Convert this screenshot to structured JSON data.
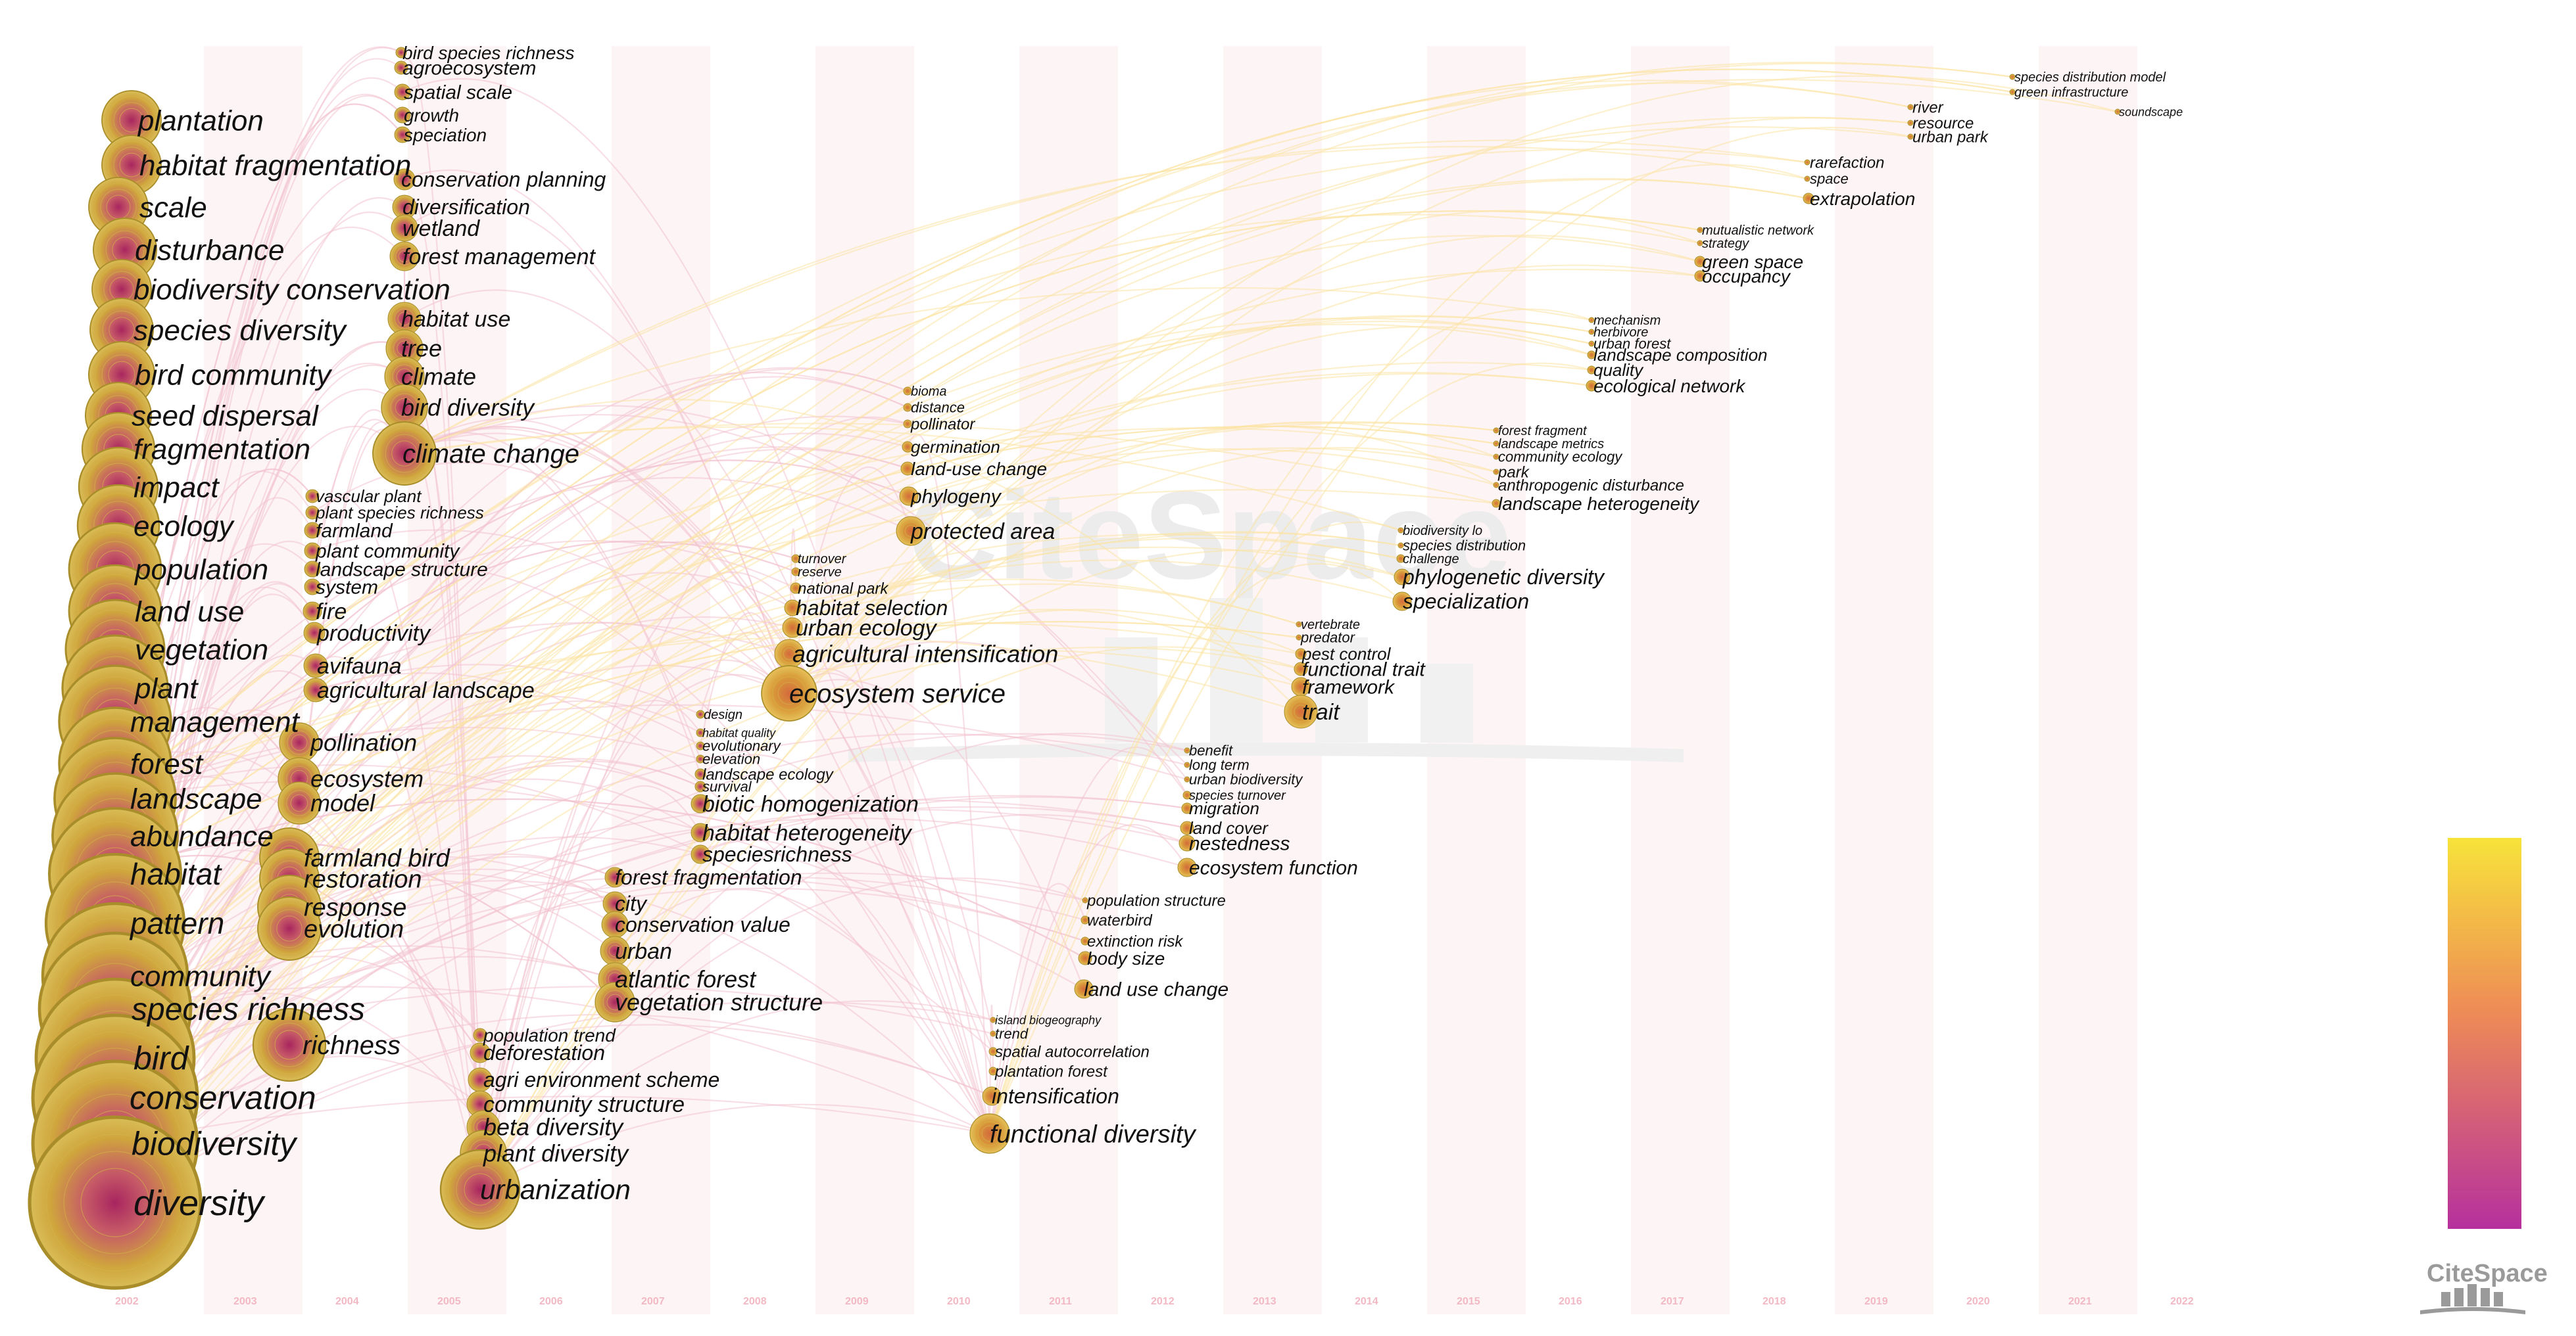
{
  "years": [
    "2002",
    "2003",
    "2004",
    "2005",
    "2006",
    "2007",
    "2008",
    "2009",
    "2010",
    "2011",
    "2012",
    "2013",
    "2014",
    "2015",
    "2016",
    "2017",
    "2018",
    "2019",
    "2020",
    "2021",
    "2022"
  ],
  "logo_text": "CiteSpace",
  "watermark_text": "CiteSpace",
  "colors": {
    "node_fill": "#c9a637",
    "node_core": "#b8436e",
    "node_edge": "#a88d2a",
    "link_old": "#f2c3cf",
    "link_new": "#fbe3a4",
    "legend_top": "#f7e33a",
    "legend_mid": "#ee8a57",
    "legend_bottom": "#b6309d",
    "year_band": "#fdf1f3"
  },
  "keywords": [
    {
      "label": "plantation",
      "year": "2002"
    },
    {
      "label": "habitat fragmentation",
      "year": "2002"
    },
    {
      "label": "scale",
      "year": "2002"
    },
    {
      "label": "disturbance",
      "year": "2002"
    },
    {
      "label": "biodiversity conservation",
      "year": "2002"
    },
    {
      "label": "species diversity",
      "year": "2002"
    },
    {
      "label": "bird community",
      "year": "2002"
    },
    {
      "label": "seed dispersal",
      "year": "2002"
    },
    {
      "label": "fragmentation",
      "year": "2002"
    },
    {
      "label": "impact",
      "year": "2002"
    },
    {
      "label": "ecology",
      "year": "2002"
    },
    {
      "label": "population",
      "year": "2002"
    },
    {
      "label": "land use",
      "year": "2002"
    },
    {
      "label": "vegetation",
      "year": "2002"
    },
    {
      "label": "plant",
      "year": "2002"
    },
    {
      "label": "management",
      "year": "2002"
    },
    {
      "label": "forest",
      "year": "2002"
    },
    {
      "label": "landscape",
      "year": "2002"
    },
    {
      "label": "abundance",
      "year": "2002"
    },
    {
      "label": "habitat",
      "year": "2002"
    },
    {
      "label": "pattern",
      "year": "2002"
    },
    {
      "label": "community",
      "year": "2002"
    },
    {
      "label": "species richness",
      "year": "2002"
    },
    {
      "label": "bird",
      "year": "2002"
    },
    {
      "label": "conservation",
      "year": "2002"
    },
    {
      "label": "biodiversity",
      "year": "2002"
    },
    {
      "label": "diversity",
      "year": "2002"
    },
    {
      "label": "vascular plant",
      "year": "2004"
    },
    {
      "label": "plant species richness",
      "year": "2004"
    },
    {
      "label": "farmland",
      "year": "2004"
    },
    {
      "label": "plant community",
      "year": "2004"
    },
    {
      "label": "landscape structure",
      "year": "2004"
    },
    {
      "label": "system",
      "year": "2004"
    },
    {
      "label": "fire",
      "year": "2004"
    },
    {
      "label": "productivity",
      "year": "2004"
    },
    {
      "label": "avifauna",
      "year": "2004"
    },
    {
      "label": "agricultural landscape",
      "year": "2004"
    },
    {
      "label": "pollination",
      "year": "2004"
    },
    {
      "label": "ecosystem",
      "year": "2004"
    },
    {
      "label": "model",
      "year": "2004"
    },
    {
      "label": "farmland bird",
      "year": "2004"
    },
    {
      "label": "restoration",
      "year": "2004"
    },
    {
      "label": "response",
      "year": "2004"
    },
    {
      "label": "evolution",
      "year": "2004"
    },
    {
      "label": "richness",
      "year": "2004"
    },
    {
      "label": "bird species richness",
      "year": "2005"
    },
    {
      "label": "agroecosystem",
      "year": "2005"
    },
    {
      "label": "spatial scale",
      "year": "2005"
    },
    {
      "label": "growth",
      "year": "2005"
    },
    {
      "label": "speciation",
      "year": "2005"
    },
    {
      "label": "conservation planning",
      "year": "2005"
    },
    {
      "label": "diversification",
      "year": "2005"
    },
    {
      "label": "wetland",
      "year": "2005"
    },
    {
      "label": "forest management",
      "year": "2005"
    },
    {
      "label": "habitat use",
      "year": "2005"
    },
    {
      "label": "tree",
      "year": "2005"
    },
    {
      "label": "climate",
      "year": "2005"
    },
    {
      "label": "bird diversity",
      "year": "2005"
    },
    {
      "label": "climate change",
      "year": "2005"
    },
    {
      "label": "population trend",
      "year": "2006"
    },
    {
      "label": "deforestation",
      "year": "2006"
    },
    {
      "label": "agri environment scheme",
      "year": "2006"
    },
    {
      "label": "community structure",
      "year": "2006"
    },
    {
      "label": "beta diversity",
      "year": "2006"
    },
    {
      "label": "plant diversity",
      "year": "2006"
    },
    {
      "label": "urbanization",
      "year": "2006"
    },
    {
      "label": "forest fragmentation",
      "year": "2007"
    },
    {
      "label": "city",
      "year": "2007"
    },
    {
      "label": "conservation value",
      "year": "2007"
    },
    {
      "label": "urban",
      "year": "2007"
    },
    {
      "label": "atlantic forest",
      "year": "2007"
    },
    {
      "label": "vegetation structure",
      "year": "2007"
    },
    {
      "label": "design",
      "year": "2008"
    },
    {
      "label": "habitat quality",
      "year": "2008"
    },
    {
      "label": "evolutionary",
      "year": "2008"
    },
    {
      "label": "elevation",
      "year": "2008"
    },
    {
      "label": "landscape ecology",
      "year": "2008"
    },
    {
      "label": "survival",
      "year": "2008"
    },
    {
      "label": "biotic homogenization",
      "year": "2008"
    },
    {
      "label": "habitat heterogeneity",
      "year": "2008"
    },
    {
      "label": "speciesrichness",
      "year": "2008"
    },
    {
      "label": "turnover",
      "year": "2009"
    },
    {
      "label": "reserve",
      "year": "2009"
    },
    {
      "label": "national park",
      "year": "2009"
    },
    {
      "label": "habitat selection",
      "year": "2009"
    },
    {
      "label": "urban ecology",
      "year": "2009"
    },
    {
      "label": "agricultural intensification",
      "year": "2009"
    },
    {
      "label": "ecosystem service",
      "year": "2009"
    },
    {
      "label": "bioma",
      "year": "2010"
    },
    {
      "label": "distance",
      "year": "2010"
    },
    {
      "label": "pollinator",
      "year": "2010"
    },
    {
      "label": "germination",
      "year": "2010"
    },
    {
      "label": "land-use change",
      "year": "2010"
    },
    {
      "label": "phylogeny",
      "year": "2010"
    },
    {
      "label": "protected area",
      "year": "2010"
    },
    {
      "label": "island biogeography",
      "year": "2011"
    },
    {
      "label": "trend",
      "year": "2011"
    },
    {
      "label": "spatial autocorrelation",
      "year": "2011"
    },
    {
      "label": "plantation forest",
      "year": "2011"
    },
    {
      "label": "intensification",
      "year": "2011"
    },
    {
      "label": "functional diversity",
      "year": "2011"
    },
    {
      "label": "population structure",
      "year": "2012"
    },
    {
      "label": "waterbird",
      "year": "2012"
    },
    {
      "label": "extinction risk",
      "year": "2012"
    },
    {
      "label": "body size",
      "year": "2012"
    },
    {
      "label": "land use change",
      "year": "2012"
    },
    {
      "label": "benefit",
      "year": "2013"
    },
    {
      "label": "long term",
      "year": "2013"
    },
    {
      "label": "urban biodiversity",
      "year": "2013"
    },
    {
      "label": "species turnover",
      "year": "2013"
    },
    {
      "label": "migration",
      "year": "2013"
    },
    {
      "label": "land cover",
      "year": "2013"
    },
    {
      "label": "nestedness",
      "year": "2013"
    },
    {
      "label": "ecosystem function",
      "year": "2013"
    },
    {
      "label": "vertebrate",
      "year": "2014"
    },
    {
      "label": "predator",
      "year": "2014"
    },
    {
      "label": "pest control",
      "year": "2014"
    },
    {
      "label": "functional trait",
      "year": "2014"
    },
    {
      "label": "framework",
      "year": "2014"
    },
    {
      "label": "trait",
      "year": "2014"
    },
    {
      "label": "biodiversity lo",
      "year": "2015"
    },
    {
      "label": "species distribution",
      "year": "2015"
    },
    {
      "label": "challenge",
      "year": "2015"
    },
    {
      "label": "phylogenetic diversity",
      "year": "2015"
    },
    {
      "label": "specialization",
      "year": "2015"
    },
    {
      "label": "forest fragment",
      "year": "2016"
    },
    {
      "label": "landscape metrics",
      "year": "2016"
    },
    {
      "label": "community ecology",
      "year": "2016"
    },
    {
      "label": "park",
      "year": "2016"
    },
    {
      "label": "anthropogenic disturbance",
      "year": "2016"
    },
    {
      "label": "landscape heterogeneity",
      "year": "2016"
    },
    {
      "label": "mechanism",
      "year": "2017"
    },
    {
      "label": "herbivore",
      "year": "2017"
    },
    {
      "label": "urban forest",
      "year": "2017"
    },
    {
      "label": "landscape composition",
      "year": "2017"
    },
    {
      "label": "quality",
      "year": "2017"
    },
    {
      "label": "ecological network",
      "year": "2017"
    },
    {
      "label": "mutualistic network",
      "year": "2018"
    },
    {
      "label": "strategy",
      "year": "2018"
    },
    {
      "label": "green space",
      "year": "2018"
    },
    {
      "label": "occupancy",
      "year": "2018"
    },
    {
      "label": "rarefaction",
      "year": "2019"
    },
    {
      "label": "space",
      "year": "2019"
    },
    {
      "label": "extrapolation",
      "year": "2019"
    },
    {
      "label": "river",
      "year": "2020"
    },
    {
      "label": "resource",
      "year": "2020"
    },
    {
      "label": "urban park",
      "year": "2020"
    },
    {
      "label": "species distribution model",
      "year": "2021"
    },
    {
      "label": "green infrastructure",
      "year": "2021"
    },
    {
      "label": "soundscape",
      "year": "2022"
    }
  ]
}
